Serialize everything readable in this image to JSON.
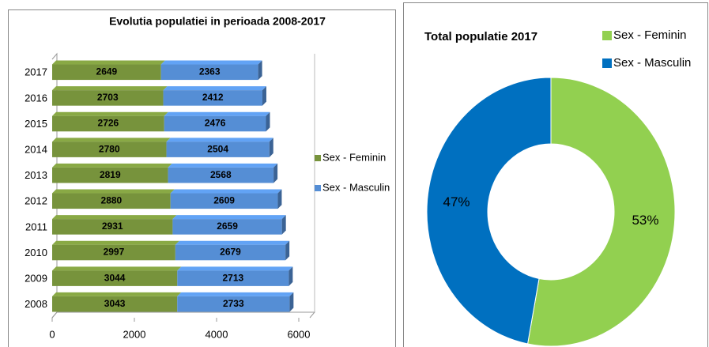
{
  "chart_data": [
    {
      "type": "bar",
      "orientation": "horizontal",
      "stacked": true,
      "title": "Evolutia populatiei in perioada 2008-2017",
      "categories": [
        "2008",
        "2009",
        "2010",
        "2011",
        "2012",
        "2013",
        "2014",
        "2015",
        "2016",
        "2017"
      ],
      "series": [
        {
          "name": "Sex - Feminin",
          "color": "#77933c",
          "values": [
            3043,
            3044,
            2997,
            2931,
            2880,
            2819,
            2780,
            2726,
            2703,
            2649
          ]
        },
        {
          "name": "Sex - Masculin",
          "color": "#558ed5",
          "values": [
            2733,
            2713,
            2679,
            2659,
            2609,
            2568,
            2504,
            2476,
            2412,
            2363
          ]
        }
      ],
      "xlim": [
        0,
        6000
      ],
      "xticks": [
        0,
        2000,
        4000,
        6000
      ],
      "legend": "right"
    },
    {
      "type": "donut",
      "title": "Total populatie 2017",
      "categories": [
        "Sex - Feminin",
        "Sex - Masculin"
      ],
      "values": [
        53,
        47
      ],
      "value_labels": [
        "53%",
        "47%"
      ],
      "colors": [
        "#92d050",
        "#0070c0"
      ],
      "legend": "top-right"
    }
  ]
}
